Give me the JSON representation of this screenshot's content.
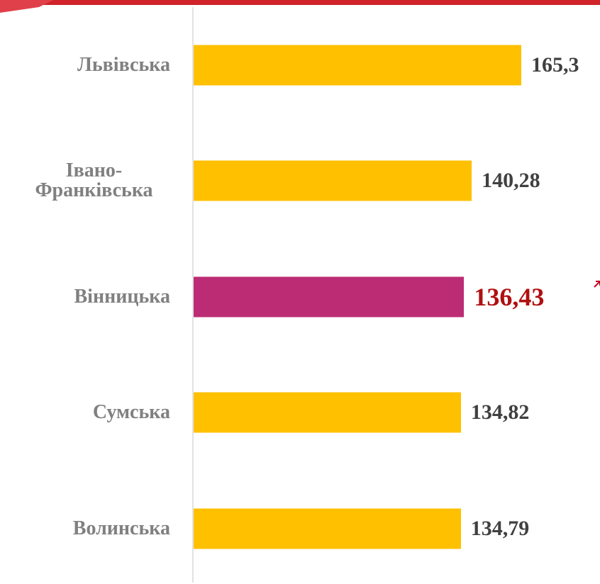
{
  "chart_data": {
    "type": "bar",
    "orientation": "horizontal",
    "categories": [
      "Львівська",
      "Івано-Франківська",
      "Вінницька",
      "Сумська",
      "Волинська"
    ],
    "values": [
      165.3,
      140.28,
      136.43,
      134.82,
      134.79
    ],
    "value_labels": [
      "165,3",
      "140,28",
      "136,43",
      "134,82",
      "134,79"
    ],
    "colors": [
      "#ffc000",
      "#ffc000",
      "#bc2c74",
      "#ffc000",
      "#ffc000"
    ],
    "label_colors": [
      "#404040",
      "#404040",
      "#b01010",
      "#404040",
      "#404040"
    ]
  }
}
